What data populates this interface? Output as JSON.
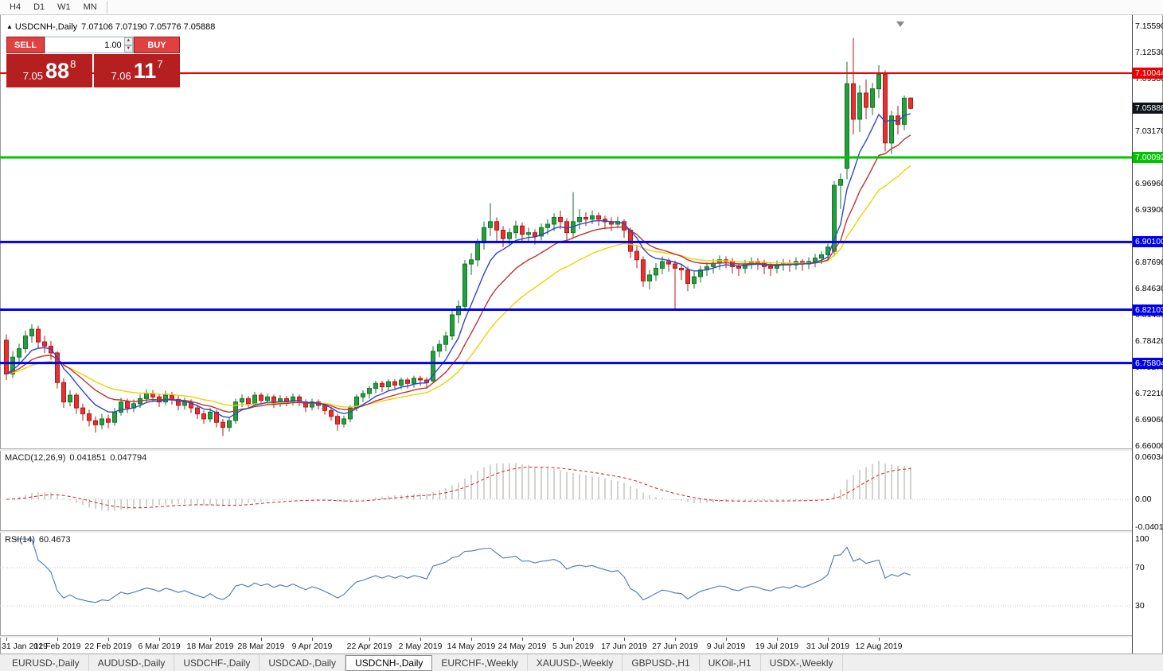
{
  "toolbar": {
    "timeframes": [
      "H4",
      "D1",
      "W1",
      "MN"
    ]
  },
  "chart": {
    "symbol_label": "USDCNH-,Daily",
    "ohlc_text": "7.07106 7.07190 7.05776 7.05888"
  },
  "trade_widget": {
    "sell_label": "SELL",
    "buy_label": "BUY",
    "volume": "1.00",
    "sell_price": {
      "prefix": "7.05",
      "big": "88",
      "sup": "8"
    },
    "buy_price": {
      "prefix": "7.06",
      "big": "11",
      "sup": "7"
    }
  },
  "price_axis": {
    "ticks": [
      "7.15590",
      "7.12530",
      "7.09380",
      "7.03170",
      "6.96960",
      "6.93900",
      "6.87690",
      "6.84630",
      "6.81480",
      "6.78420",
      "6.75270",
      "6.72210",
      "6.69060",
      "6.66000"
    ],
    "lines": [
      {
        "value": 7.10044,
        "label": "7.10044",
        "color": "#F00000",
        "width": 2
      },
      {
        "value": 7.00092,
        "label": "7.00092",
        "color": "#00C400",
        "width": 3
      },
      {
        "value": 6.901,
        "label": "6.90100",
        "color": "#0000F0",
        "width": 3
      },
      {
        "value": 6.82103,
        "label": "6.82103",
        "color": "#0000F0",
        "width": 3
      },
      {
        "value": 6.75804,
        "label": "6.75804",
        "color": "#0000F0",
        "width": 3
      }
    ],
    "bid_label": {
      "value": 7.05888,
      "label": "7.05888",
      "bg": "#10151C"
    }
  },
  "indicators": {
    "macd": {
      "name": "MACD(12,26,9)",
      "value_main": "0.041851",
      "value_signal": "0.047794",
      "axis_labels": [
        "0.060343",
        "0.00",
        "-0.040136"
      ]
    },
    "rsi": {
      "name": "RSI(14)",
      "value": "60.4673",
      "axis_labels": [
        "100",
        "70",
        "30"
      ]
    }
  },
  "tabs": [
    {
      "label": "EURUSD-,Daily",
      "active": false
    },
    {
      "label": "AUDUSD-,Daily",
      "active": false
    },
    {
      "label": "USDCHF-,Daily",
      "active": false
    },
    {
      "label": "USDCAD-,Daily",
      "active": false
    },
    {
      "label": "USDCNH-,Daily",
      "active": true
    },
    {
      "label": "EURCHF-,Weekly",
      "active": false
    },
    {
      "label": "XAUUSD-,Weekly",
      "active": false
    },
    {
      "label": "GBPUSD-,H1",
      "active": false
    },
    {
      "label": "UKOil-,H1",
      "active": false
    },
    {
      "label": "USDX-,Weekly",
      "active": false
    }
  ],
  "chart_data": {
    "type": "candlestick",
    "symbol": "USDCNH",
    "timeframe": "Daily",
    "price_range": {
      "top": 7.1559,
      "bottom": 6.66
    },
    "colors": {
      "up": "#23A03C",
      "up_border": "#15722A",
      "down": "#E83030",
      "down_border": "#B01818"
    },
    "ma_periods": [
      7,
      14,
      25
    ],
    "ma_colors": [
      "#2B48C8",
      "#C03232",
      "#EED202"
    ],
    "macd_axis": {
      "max": 0.060343,
      "min": -0.040136
    },
    "rsi_levels": [
      70,
      30
    ],
    "date_labels": [
      {
        "index": 0,
        "label": "31 Jan 2019"
      },
      {
        "index": 8,
        "label": "12 Feb 2019"
      },
      {
        "index": 16,
        "label": "22 Feb 2019"
      },
      {
        "index": 24,
        "label": "6 Mar 2019"
      },
      {
        "index": 32,
        "label": "18 Mar 2019"
      },
      {
        "index": 40,
        "label": "28 Mar 2019"
      },
      {
        "index": 48,
        "label": "9 Apr 2019"
      },
      {
        "index": 57,
        "label": "22 Apr 2019"
      },
      {
        "index": 65,
        "label": "2 May 2019"
      },
      {
        "index": 73,
        "label": "14 May 2019"
      },
      {
        "index": 81,
        "label": "24 May 2019"
      },
      {
        "index": 89,
        "label": "5 Jun 2019"
      },
      {
        "index": 97,
        "label": "17 Jun 2019"
      },
      {
        "index": 105,
        "label": "27 Jun 2019"
      },
      {
        "index": 113,
        "label": "9 Jul 2019"
      },
      {
        "index": 121,
        "label": "19 Jul 2019"
      },
      {
        "index": 129,
        "label": "31 Jul 2019"
      },
      {
        "index": 137,
        "label": "12 Aug 2019"
      }
    ],
    "candles_ohlc": [
      [
        6.785,
        6.792,
        6.738,
        6.745
      ],
      [
        6.745,
        6.772,
        6.74,
        6.765
      ],
      [
        6.765,
        6.781,
        6.758,
        6.775
      ],
      [
        6.775,
        6.796,
        6.77,
        6.79
      ],
      [
        6.79,
        6.804,
        6.782,
        6.798
      ],
      [
        6.798,
        6.802,
        6.776,
        6.783
      ],
      [
        6.783,
        6.79,
        6.77,
        6.778
      ],
      [
        6.778,
        6.784,
        6.762,
        6.77
      ],
      [
        6.77,
        6.772,
        6.728,
        6.735
      ],
      [
        6.735,
        6.74,
        6.705,
        6.712
      ],
      [
        6.712,
        6.726,
        6.707,
        6.72
      ],
      [
        6.72,
        6.723,
        6.698,
        6.705
      ],
      [
        6.705,
        6.71,
        6.69,
        6.698
      ],
      [
        6.698,
        6.703,
        6.683,
        6.69
      ],
      [
        6.69,
        6.695,
        6.676,
        6.685
      ],
      [
        6.685,
        6.698,
        6.68,
        6.692
      ],
      [
        6.692,
        6.697,
        6.681,
        6.688
      ],
      [
        6.688,
        6.705,
        6.684,
        6.7
      ],
      [
        6.7,
        6.717,
        6.696,
        6.712
      ],
      [
        6.712,
        6.716,
        6.699,
        6.705
      ],
      [
        6.705,
        6.715,
        6.7,
        6.71
      ],
      [
        6.71,
        6.721,
        6.705,
        6.716
      ],
      [
        6.716,
        6.727,
        6.711,
        6.722
      ],
      [
        6.722,
        6.726,
        6.712,
        6.718
      ],
      [
        6.718,
        6.722,
        6.706,
        6.712
      ],
      [
        6.712,
        6.725,
        6.708,
        6.72
      ],
      [
        6.72,
        6.724,
        6.709,
        6.715
      ],
      [
        6.715,
        6.719,
        6.702,
        6.708
      ],
      [
        6.708,
        6.717,
        6.703,
        6.712
      ],
      [
        6.712,
        6.715,
        6.699,
        6.705
      ],
      [
        6.705,
        6.709,
        6.692,
        6.698
      ],
      [
        6.698,
        6.702,
        6.686,
        6.692
      ],
      [
        6.692,
        6.705,
        6.688,
        6.7
      ],
      [
        6.7,
        6.703,
        6.682,
        6.688
      ],
      [
        6.688,
        6.692,
        6.672,
        6.682
      ],
      [
        6.682,
        6.694,
        6.677,
        6.69
      ],
      [
        6.69,
        6.716,
        6.686,
        6.712
      ],
      [
        6.712,
        6.721,
        6.706,
        6.716
      ],
      [
        6.716,
        6.719,
        6.704,
        6.71
      ],
      [
        6.71,
        6.724,
        6.706,
        6.72
      ],
      [
        6.72,
        6.723,
        6.709,
        6.714
      ],
      [
        6.714,
        6.722,
        6.709,
        6.718
      ],
      [
        6.718,
        6.721,
        6.705,
        6.71
      ],
      [
        6.71,
        6.72,
        6.706,
        6.716
      ],
      [
        6.716,
        6.719,
        6.707,
        6.712
      ],
      [
        6.712,
        6.722,
        6.708,
        6.718
      ],
      [
        6.718,
        6.721,
        6.707,
        6.712
      ],
      [
        6.712,
        6.715,
        6.7,
        6.706
      ],
      [
        6.706,
        6.716,
        6.702,
        6.712
      ],
      [
        6.712,
        6.715,
        6.703,
        6.708
      ],
      [
        6.708,
        6.711,
        6.697,
        6.702
      ],
      [
        6.702,
        6.706,
        6.69,
        6.695
      ],
      [
        6.695,
        6.698,
        6.678,
        6.686
      ],
      [
        6.686,
        6.696,
        6.682,
        6.692
      ],
      [
        6.692,
        6.708,
        6.688,
        6.705
      ],
      [
        6.705,
        6.721,
        6.701,
        6.718
      ],
      [
        6.718,
        6.726,
        6.712,
        6.722
      ],
      [
        6.722,
        6.731,
        6.716,
        6.728
      ],
      [
        6.728,
        6.737,
        6.722,
        6.734
      ],
      [
        6.734,
        6.737,
        6.724,
        6.73
      ],
      [
        6.73,
        6.739,
        6.725,
        6.736
      ],
      [
        6.736,
        6.739,
        6.726,
        6.732
      ],
      [
        6.732,
        6.741,
        6.727,
        6.738
      ],
      [
        6.738,
        6.741,
        6.728,
        6.734
      ],
      [
        6.734,
        6.743,
        6.729,
        6.74
      ],
      [
        6.74,
        6.743,
        6.731,
        6.738
      ],
      [
        6.738,
        6.741,
        6.728,
        6.735
      ],
      [
        6.737,
        6.778,
        6.734,
        6.772
      ],
      [
        6.772,
        6.785,
        6.765,
        6.78
      ],
      [
        6.78,
        6.795,
        6.772,
        6.79
      ],
      [
        6.79,
        6.82,
        6.785,
        6.815
      ],
      [
        6.815,
        6.832,
        6.805,
        6.825
      ],
      [
        6.825,
        6.88,
        6.82,
        6.875
      ],
      [
        6.875,
        6.888,
        6.862,
        6.88
      ],
      [
        6.88,
        6.905,
        6.872,
        6.9
      ],
      [
        6.9,
        6.925,
        6.892,
        6.918
      ],
      [
        6.918,
        6.947,
        6.908,
        6.925
      ],
      [
        6.925,
        6.93,
        6.902,
        6.915
      ],
      [
        6.915,
        6.92,
        6.895,
        6.905
      ],
      [
        6.905,
        6.917,
        6.898,
        6.912
      ],
      [
        6.912,
        6.926,
        6.905,
        6.92
      ],
      [
        6.92,
        6.924,
        6.9,
        6.91
      ],
      [
        6.91,
        6.918,
        6.902,
        6.912
      ],
      [
        6.912,
        6.916,
        6.898,
        6.908
      ],
      [
        6.908,
        6.923,
        6.903,
        6.918
      ],
      [
        6.918,
        6.928,
        6.91,
        6.922
      ],
      [
        6.922,
        6.935,
        6.914,
        6.93
      ],
      [
        6.93,
        6.938,
        6.916,
        6.925
      ],
      [
        6.925,
        6.929,
        6.902,
        6.912
      ],
      [
        6.912,
        6.96,
        6.906,
        6.925
      ],
      [
        6.925,
        6.94,
        6.916,
        6.93
      ],
      [
        6.93,
        6.936,
        6.92,
        6.928
      ],
      [
        6.928,
        6.938,
        6.922,
        6.932
      ],
      [
        6.932,
        6.936,
        6.92,
        6.928
      ],
      [
        6.928,
        6.932,
        6.916,
        6.925
      ],
      [
        6.925,
        6.93,
        6.914,
        6.922
      ],
      [
        6.922,
        6.931,
        6.917,
        6.925
      ],
      [
        6.925,
        6.928,
        6.906,
        6.915
      ],
      [
        6.915,
        6.918,
        6.882,
        6.89
      ],
      [
        6.89,
        6.896,
        6.87,
        6.88
      ],
      [
        6.88,
        6.884,
        6.848,
        6.855
      ],
      [
        6.855,
        6.868,
        6.845,
        6.862
      ],
      [
        6.862,
        6.876,
        6.855,
        6.87
      ],
      [
        6.87,
        6.884,
        6.863,
        6.878
      ],
      [
        6.878,
        6.882,
        6.866,
        6.875
      ],
      [
        6.875,
        6.879,
        6.822,
        6.87
      ],
      [
        6.87,
        6.875,
        6.856,
        6.868
      ],
      [
        6.868,
        6.872,
        6.843,
        6.852
      ],
      [
        6.852,
        6.866,
        6.846,
        6.86
      ],
      [
        6.86,
        6.873,
        6.853,
        6.868
      ],
      [
        6.868,
        6.877,
        6.861,
        6.872
      ],
      [
        6.872,
        6.881,
        6.864,
        6.876
      ],
      [
        6.876,
        6.885,
        6.868,
        6.88
      ],
      [
        6.88,
        6.884,
        6.87,
        6.878
      ],
      [
        6.878,
        6.882,
        6.864,
        6.872
      ],
      [
        6.872,
        6.876,
        6.861,
        6.87
      ],
      [
        6.87,
        6.88,
        6.864,
        6.875
      ],
      [
        6.875,
        6.883,
        6.869,
        6.878
      ],
      [
        6.878,
        6.882,
        6.868,
        6.876
      ],
      [
        6.876,
        6.88,
        6.863,
        6.872
      ],
      [
        6.872,
        6.876,
        6.861,
        6.87
      ],
      [
        6.87,
        6.879,
        6.864,
        6.874
      ],
      [
        6.874,
        6.881,
        6.867,
        6.876
      ],
      [
        6.876,
        6.88,
        6.866,
        6.874
      ],
      [
        6.874,
        6.883,
        6.868,
        6.878
      ],
      [
        6.878,
        6.881,
        6.867,
        6.875
      ],
      [
        6.875,
        6.883,
        6.869,
        6.878
      ],
      [
        6.878,
        6.887,
        6.871,
        6.882
      ],
      [
        6.882,
        6.89,
        6.875,
        6.886
      ],
      [
        6.886,
        6.899,
        6.879,
        6.895
      ],
      [
        6.89,
        6.973,
        6.884,
        6.968
      ],
      [
        6.968,
        6.982,
        6.94,
        6.975
      ],
      [
        6.988,
        7.114,
        6.975,
        7.088
      ],
      [
        7.088,
        7.142,
        7.028,
        7.046
      ],
      [
        7.046,
        7.086,
        7.031,
        7.077
      ],
      [
        7.077,
        7.093,
        7.046,
        7.06
      ],
      [
        7.06,
        7.089,
        7.051,
        7.082
      ],
      [
        7.082,
        7.11,
        7.071,
        7.099
      ],
      [
        7.099,
        7.104,
        7.008,
        7.018
      ],
      [
        7.018,
        7.056,
        7.005,
        7.05
      ],
      [
        7.05,
        7.062,
        7.028,
        7.04
      ],
      [
        7.04,
        7.074,
        7.033,
        7.071
      ],
      [
        7.0711,
        7.0719,
        7.0578,
        7.0589
      ]
    ]
  }
}
